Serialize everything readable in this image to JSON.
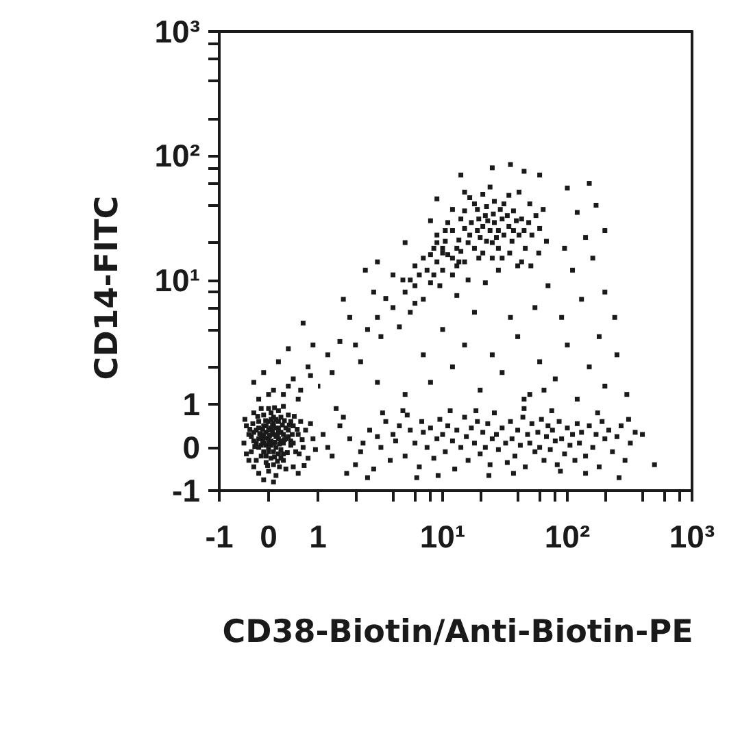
{
  "chart_data": [
    {
      "type": "scatter",
      "ylabel": "CD14-FITC",
      "log": "y",
      "marker": "square",
      "tick_labels": "y",
      "xlim": [
        -1,
        1
      ],
      "ylim": [
        1,
        1000
      ],
      "yticks": [
        {
          "value": 2,
          "label": null
        },
        {
          "value": 4,
          "label": null
        },
        {
          "value": 6,
          "label": null
        },
        {
          "value": 8,
          "label": null
        },
        {
          "value": 10,
          "label": "10¹"
        },
        {
          "value": 20,
          "label": null
        },
        {
          "value": 40,
          "label": null
        },
        {
          "value": 60,
          "label": null
        },
        {
          "value": 80,
          "label": null
        },
        {
          "value": 100,
          "label": "10²"
        },
        {
          "value": 200,
          "label": null
        },
        {
          "value": 400,
          "label": null
        },
        {
          "value": 600,
          "label": null
        },
        {
          "value": 800,
          "label": null
        },
        {
          "value": 1000,
          "label": "10³"
        }
      ],
      "series": [
        {
          "color": "#1a1a1a",
          "x": [
            -0.3,
            -0.2,
            0.1,
            0.3,
            0.6,
            0.5,
            0.2,
            0.8,
            0.9,
            0.7,
            0.4,
            0.0,
            0.4,
            -0.1,
            0.65,
            0.85
          ],
          "values": [
            1.5,
            1.1,
            1.3,
            1.2,
            1.1,
            1.6,
            2.2,
            2.0,
            3.0,
            4.5,
            2.8,
            1.2,
            1.4,
            1.8,
            1.3,
            1.7
          ]
        }
      ]
    },
    {
      "type": "scatter",
      "log": "xy",
      "marker": "square",
      "tick_labels": false,
      "xlim": [
        1,
        1000
      ],
      "ylim": [
        1,
        1000
      ],
      "series": [
        {
          "color": "#1a1a1a",
          "x": [
            19,
            16.5,
            21,
            22.5,
            15,
            19.5,
            24,
            18,
            26,
            13.5,
            20,
            17,
            22,
            25,
            16,
            28,
            14,
            23,
            27,
            19,
            30,
            12,
            31,
            25.5,
            13,
            34,
            21,
            28,
            11,
            33,
            37,
            18,
            22.5,
            36,
            10.5,
            29,
            39,
            15,
            19.5,
            41,
            9,
            34.5,
            26,
            10,
            43,
            16.5,
            45,
            31,
            8.5,
            49,
            13.5,
            25,
            37,
            30,
            21,
            52,
            12,
            46,
            34,
            56,
            10,
            12,
            9,
            8,
            10,
            7.5,
            9,
            11,
            8.5,
            13,
            7,
            6.5,
            8,
            12,
            14,
            6,
            9.5,
            15,
            5.5,
            10.5,
            60,
            64,
            41,
            50,
            24,
            15,
            68,
            59,
            51,
            43
          ],
          "values": [
            25,
            23,
            27,
            20.5,
            26,
            31,
            25,
            18,
            29,
            21,
            22,
            29,
            33,
            20,
            20,
            25,
            31,
            30,
            22,
            37,
            31,
            25,
            23,
            34,
            18,
            27,
            16.5,
            18,
            29,
            33,
            25,
            41,
            39,
            20.5,
            20.5,
            37,
            30,
            36,
            15,
            23,
            23,
            16.5,
            43,
            16.5,
            31,
            46,
            25,
            41,
            18,
            29,
            14,
            15,
            36,
            15,
            49,
            23,
            37,
            18,
            48,
            33,
            18,
            15,
            14,
            16,
            12,
            12,
            20,
            16,
            11,
            13,
            15,
            11,
            9.5,
            11,
            17,
            13,
            9,
            14,
            10,
            25,
            26,
            37,
            51,
            41,
            56,
            51,
            20.5,
            16.5,
            13,
            14
          ]
        },
        {
          "color": "#1a1a1a",
          "x": [
            1.0,
            1.3,
            1.2,
            1.5,
            2.0,
            2.2,
            2.5,
            1.8,
            3.2,
            3.0,
            4.5,
            4.0,
            3.5,
            2.8,
            5.5,
            5.0,
            7.0,
            6.0,
            4.8,
            6,
            4,
            5,
            8,
            12,
            20,
            30,
            50,
            80,
            120,
            200,
            3,
            7,
            15,
            25,
            40,
            60,
            100,
            150,
            250,
            45,
            65,
            300,
            10,
            18,
            35,
            55,
            90,
            130,
            180,
            240,
            13,
            22,
            16,
            28,
            40,
            70,
            110,
            200,
            160,
            95,
            140,
            120,
            170,
            100,
            60,
            45,
            25,
            8,
            5,
            3,
            150,
            1.6,
            2.4,
            9,
            14,
            35,
            200
          ],
          "values": [
            1.4,
            1.8,
            2.5,
            3.2,
            3.0,
            2.2,
            4.0,
            5.0,
            3.5,
            5.0,
            4.2,
            6.0,
            7.1,
            8.0,
            5.5,
            8.0,
            7.0,
            9.0,
            10,
            6.5,
            11,
            1.2,
            1.5,
            2.0,
            1.3,
            1.8,
            1.2,
            1.6,
            1.1,
            1.4,
            1.5,
            2.5,
            3.0,
            2.5,
            3.5,
            2.2,
            3.0,
            2.0,
            2.5,
            1.1,
            1.3,
            1.2,
            4.0,
            5.5,
            5.0,
            6.0,
            5.0,
            7.0,
            3.5,
            5,
            7.5,
            9.5,
            10,
            12,
            13,
            9.0,
            12,
            8,
            15,
            18,
            22,
            35,
            40,
            55,
            70,
            75,
            80,
            30,
            20,
            14,
            60,
            7,
            12,
            45,
            70,
            85,
            25
          ]
        }
      ]
    },
    {
      "type": "scatter",
      "marker": "square",
      "xlim": [
        -1,
        1
      ],
      "ylim": [
        -1,
        1
      ],
      "xticks": [
        -1,
        0,
        1
      ],
      "yticks": [
        -1,
        0,
        1
      ],
      "series": [
        {
          "color": "#1a1a1a",
          "x": [
            0.0,
            0.1,
            -0.1,
            0.05,
            0.15,
            -0.05,
            0.2,
            -0.15,
            0.0,
            0.1,
            0.25,
            -0.2,
            0.05,
            0.3,
            -0.1,
            0.15,
            -0.25,
            0.0,
            0.2,
            -0.05,
            0.35,
            0.1,
            -0.3,
            0.4,
            -0.15,
            0.25,
            0.05,
            -0.2,
            0.3,
            -0.35,
            0.45,
            0.0,
            -0.1,
            0.2,
            -0.05,
            0.12,
            -0.08,
            0.08,
            0.18,
            -0.12,
            0.5,
            0.55,
            -0.4,
            0.6,
            -0.45,
            0.35,
            -0.3,
            0.15,
            -0.2,
            0.4,
            0.0,
            0.2,
            -0.3,
            0.65,
            0.7,
            -0.5,
            0.1,
            -0.1,
            0.5,
            0.75,
            0.8,
            0.3,
            -0.4,
            0.6,
            0.9,
            -0.15,
            0.45,
            0.25,
            -0.25,
            0.05,
            0.02,
            0.32,
            -0.18,
            0.12,
            0.28,
            -0.06,
            0.38,
            -0.32,
            0.22,
            0.48,
            0.0,
            0.1,
            -0.1,
            0.2,
            0.05,
            -0.05,
            0.15,
            0.3,
            -0.2,
            0.1,
            0.25,
            -0.15,
            0.0,
            0.35,
            -0.25,
            0.2,
            -0.1,
            0.4,
            0.1,
            -0.3,
            0.3,
            -0.05,
            0.15,
            0.45,
            -0.2,
            0.05,
            0.25,
            -0.35,
            0.5,
            0.0,
            0.08,
            -0.12,
            0.22,
            0.18,
            -0.28,
            0.42,
            -0.02,
            0.32,
            -0.22,
            0.58,
            0.62,
            -0.38,
            0.12,
            0.52,
            -0.45,
            0.68,
            0.85,
            0.95,
            -0.48,
            0.72
          ],
          "values": [
            0.2,
            0.3,
            0.1,
            0.45,
            0.0,
            0.35,
            0.2,
            0.25,
            -0.1,
            0.55,
            0.35,
            0.0,
            -0.25,
            0.1,
            0.5,
            0.65,
            0.4,
            0.6,
            -0.15,
            -0.35,
            0.45,
            -0.4,
            0.15,
            0.25,
            -0.2,
            0.7,
            0.8,
            0.6,
            -0.3,
            -0.1,
            0.05,
            -0.55,
            0.75,
            0.45,
            0.05,
            0.12,
            0.22,
            0.38,
            0.28,
            0.42,
            0.5,
            -0.1,
            0.3,
            0.3,
            0.5,
            -0.5,
            -0.45,
            -0.65,
            -0.6,
            0.75,
            0.9,
            0.85,
            0.8,
            0.6,
            0.0,
            0.1,
            -0.8,
            -0.75,
            -0.45,
            0.4,
            -0.25,
            0.95,
            -0.3,
            -0.6,
            0.2,
            0.9,
            0.6,
            -0.05,
            -0.3,
            0.05,
            0.28,
            0.18,
            0.32,
            -0.22,
            0.52,
            0.62,
            -0.12,
            0.55,
            -0.45,
            0.3,
            0.0,
            0.1,
            0.3,
            0.35,
            0.15,
            0.5,
            0.45,
            0.3,
            0.2,
            -0.1,
            0.15,
            0.05,
            0.4,
            0.2,
            0.1,
            0.6,
            -0.1,
            0.4,
            0.7,
            0.35,
            -0.15,
            -0.2,
            0.25,
            0.15,
            0.45,
            0.65,
            -0.25,
            0.25,
            0.1,
            0.1,
            0.5,
            0.15,
            0.08,
            -0.32,
            0.02,
            0.52,
            -0.42,
            0.62,
            0.72,
            0.42,
            -0.15,
            0.42,
            0.92,
            0.72,
            -0.15,
            0.18,
            0.55,
            -0.05,
            0.65,
            -0.42
          ]
        }
      ]
    },
    {
      "type": "scatter",
      "xlabel": "CD38-Biotin/Anti-Biotin-PE",
      "log": "x",
      "marker": "square",
      "tick_labels": "x",
      "xlim": [
        1,
        1000
      ],
      "ylim": [
        -1,
        1
      ],
      "xticks": [
        {
          "value": 2,
          "label": null
        },
        {
          "value": 4,
          "label": null
        },
        {
          "value": 6,
          "label": null
        },
        {
          "value": 8,
          "label": null
        },
        {
          "value": 10,
          "label": "10¹"
        },
        {
          "value": 20,
          "label": null
        },
        {
          "value": 40,
          "label": null
        },
        {
          "value": 60,
          "label": null
        },
        {
          "value": 80,
          "label": null
        },
        {
          "value": 100,
          "label": "10²"
        },
        {
          "value": 200,
          "label": null
        },
        {
          "value": 400,
          "label": null
        },
        {
          "value": 600,
          "label": null
        },
        {
          "value": 800,
          "label": null
        },
        {
          "value": 1000,
          "label": "10³"
        }
      ],
      "series": [
        {
          "color": "#1a1a1a",
          "x": [
            1.1,
            1.3,
            1.5,
            1.2,
            1.8,
            2.0,
            1.6,
            2.3,
            2.6,
            2.2,
            3.0,
            2.8,
            3.5,
            3.2,
            4.0,
            3.8,
            4.5,
            4.2,
            5.0,
            5.5,
            5.2,
            6.0,
            6.5,
            7.0,
            6.8,
            7.5,
            8.0,
            8.5,
            9.0,
            9.5,
            10,
            10.5,
            11,
            12,
            12.5,
            13,
            14,
            15,
            15.5,
            16,
            17,
            18,
            19,
            20,
            21,
            22,
            23,
            24,
            25,
            26,
            27,
            28,
            30,
            32,
            33,
            35,
            36,
            38,
            40,
            42,
            44,
            46,
            48,
            50,
            52,
            55,
            58,
            60,
            62,
            65,
            68,
            70,
            73,
            76,
            80,
            83,
            86,
            90,
            95,
            100,
            105,
            110,
            115,
            120,
            125,
            130,
            140,
            150,
            160,
            170,
            180,
            190,
            200,
            215,
            230,
            250,
            270,
            290,
            320,
            350,
            1.4,
            2.5,
            4.8,
            9.2,
            18.5,
            37,
            75,
            140,
            260,
            400,
            1.7,
            3.3,
            6.2,
            11.5,
            23.5,
            45,
            88,
            175,
            310,
            500
          ],
          "values": [
            0.3,
            -0.2,
            0.5,
            0.0,
            0.2,
            -0.4,
            0.7,
            0.1,
            0.4,
            -0.1,
            0.25,
            -0.5,
            0.6,
            0.0,
            0.3,
            -0.3,
            0.5,
            0.15,
            -0.2,
            0.4,
            0.75,
            0.1,
            -0.45,
            0.35,
            0.6,
            0.0,
            0.45,
            -0.25,
            0.2,
            0.65,
            0.3,
            -0.1,
            0.5,
            0.15,
            -0.5,
            0.4,
            0.0,
            0.7,
            0.25,
            -0.3,
            0.45,
            0.1,
            0.6,
            -0.15,
            0.35,
            0.0,
            0.55,
            -0.4,
            0.2,
            0.8,
            0.3,
            -0.05,
            0.45,
            0.1,
            -0.35,
            0.6,
            0.2,
            -0.2,
            0.4,
            0.05,
            0.7,
            -0.45,
            0.3,
            0.1,
            0.55,
            -0.1,
            0.35,
            0.0,
            0.65,
            -0.3,
            0.25,
            0.5,
            -0.05,
            0.4,
            0.15,
            -0.4,
            0.6,
            0.2,
            -0.15,
            0.45,
            0.05,
            0.3,
            -0.3,
            0.55,
            0.1,
            0.35,
            -0.2,
            0.5,
            0.0,
            0.3,
            -0.45,
            0.6,
            0.2,
            0.4,
            -0.1,
            0.25,
            0.5,
            -0.3,
            0.1,
            0.35,
            0.9,
            -0.7,
            0.85,
            -0.65,
            0.85,
            -0.6,
            0.85,
            -0.6,
            -0.7,
            0.3,
            -0.6,
            0.8,
            -0.7,
            0.85,
            -0.65,
            0.9,
            -0.55,
            0.8,
            0.65,
            -0.4
          ]
        }
      ]
    }
  ]
}
